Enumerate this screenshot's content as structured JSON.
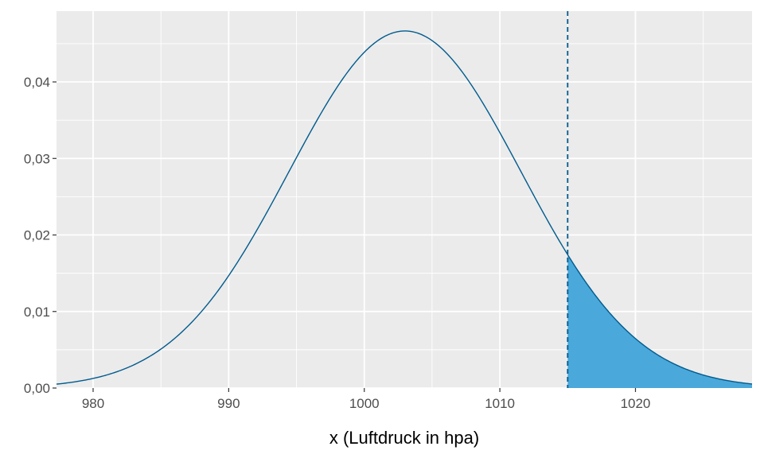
{
  "chart_data": {
    "type": "area",
    "title": "",
    "xlabel": "x (Luftdruck in hpa)",
    "ylabel": "",
    "xlim": [
      977.3,
      1028.6
    ],
    "ylim": [
      0,
      0.04925
    ],
    "x_ticks": [
      {
        "value": 980,
        "label": "980"
      },
      {
        "value": 990,
        "label": "990"
      },
      {
        "value": 1000,
        "label": "1000"
      },
      {
        "value": 1010,
        "label": "1010"
      },
      {
        "value": 1020,
        "label": "1020"
      }
    ],
    "x_minor": [
      985,
      995,
      1005,
      1015,
      1025
    ],
    "y_ticks": [
      {
        "value": 0.0,
        "label": "0,00"
      },
      {
        "value": 0.01,
        "label": "0,01"
      },
      {
        "value": 0.02,
        "label": "0,02"
      },
      {
        "value": 0.03,
        "label": "0,03"
      },
      {
        "value": 0.04,
        "label": "0,04"
      }
    ],
    "y_minor": [
      0.005,
      0.015,
      0.025,
      0.035,
      0.045
    ],
    "series": [
      {
        "kind": "normal-density-curve",
        "mean": 1003,
        "sd": 8.55,
        "x_range": [
          977.3,
          1028.6
        ],
        "color": "#005b8e"
      }
    ],
    "shaded_region": {
      "from": 1015,
      "to": 1028.6,
      "fill": "#4aa8da",
      "edge": "#005b8e"
    },
    "vline": {
      "x": 1015,
      "style": "dashed",
      "color": "#005b8e"
    },
    "grid": true,
    "panel_background": "#ebebeb",
    "grid_color": "#ffffff"
  }
}
